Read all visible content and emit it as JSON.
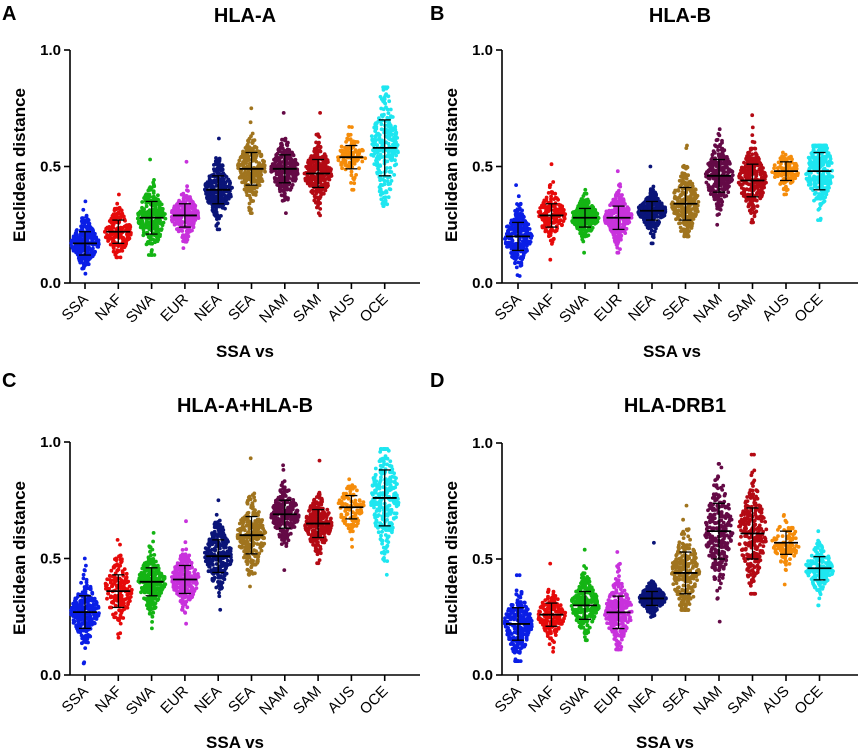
{
  "chart_data": [
    {
      "panel": "A",
      "type": "scatter",
      "title": "HLA-A",
      "xlabel": "SSA vs",
      "ylabel": "Euclidean distance",
      "ylim": [
        0,
        1
      ],
      "yticks": [
        "0.0",
        "0.5",
        "1.0"
      ],
      "categories": [
        "SSA",
        "NAF",
        "SWA",
        "EUR",
        "NEA",
        "SEA",
        "NAM",
        "SAM",
        "AUS",
        "OCE"
      ],
      "colors": [
        "#0a1ee6",
        "#e60a0a",
        "#14b414",
        "#c832dc",
        "#0a1478",
        "#a0741e",
        "#640a46",
        "#b40a14",
        "#f58c0a",
        "#1ee6f0"
      ],
      "series": [
        {
          "name": "SSA",
          "mean": 0.17,
          "sd": 0.05,
          "min": 0.04,
          "max": 0.35,
          "n": 260
        },
        {
          "name": "NAF",
          "mean": 0.22,
          "sd": 0.05,
          "min": 0.11,
          "max": 0.38,
          "n": 170
        },
        {
          "name": "SWA",
          "mean": 0.28,
          "sd": 0.07,
          "min": 0.12,
          "max": 0.53,
          "n": 260
        },
        {
          "name": "EUR",
          "mean": 0.29,
          "sd": 0.05,
          "min": 0.15,
          "max": 0.52,
          "n": 260
        },
        {
          "name": "NEA",
          "mean": 0.4,
          "sd": 0.06,
          "min": 0.23,
          "max": 0.62,
          "n": 260
        },
        {
          "name": "SEA",
          "mean": 0.49,
          "sd": 0.07,
          "min": 0.3,
          "max": 0.75,
          "n": 260
        },
        {
          "name": "NAM",
          "mean": 0.49,
          "sd": 0.06,
          "min": 0.3,
          "max": 0.73,
          "n": 260
        },
        {
          "name": "SAM",
          "mean": 0.47,
          "sd": 0.06,
          "min": 0.29,
          "max": 0.73,
          "n": 260
        },
        {
          "name": "AUS",
          "mean": 0.54,
          "sd": 0.05,
          "min": 0.4,
          "max": 0.67,
          "n": 110
        },
        {
          "name": "OCE",
          "mean": 0.58,
          "sd": 0.12,
          "min": 0.33,
          "max": 0.84,
          "n": 260
        }
      ]
    },
    {
      "panel": "B",
      "type": "scatter",
      "title": "HLA-B",
      "xlabel": "SSA vs",
      "ylabel": "Euclidean distance",
      "ylim": [
        0,
        1
      ],
      "yticks": [
        "0.0",
        "0.5",
        "1.0"
      ],
      "categories": [
        "SSA",
        "NAF",
        "SWA",
        "EUR",
        "NEA",
        "SEA",
        "NAM",
        "SAM",
        "AUS",
        "OCE"
      ],
      "colors": [
        "#0a1ee6",
        "#e60a0a",
        "#14b414",
        "#c832dc",
        "#0a1478",
        "#a0741e",
        "#640a46",
        "#b40a14",
        "#f58c0a",
        "#1ee6f0"
      ],
      "series": [
        {
          "name": "SSA",
          "mean": 0.2,
          "sd": 0.06,
          "min": 0.03,
          "max": 0.42,
          "n": 260
        },
        {
          "name": "NAF",
          "mean": 0.29,
          "sd": 0.05,
          "min": 0.1,
          "max": 0.51,
          "n": 170
        },
        {
          "name": "SWA",
          "mean": 0.28,
          "sd": 0.04,
          "min": 0.13,
          "max": 0.4,
          "n": 260
        },
        {
          "name": "EUR",
          "mean": 0.28,
          "sd": 0.05,
          "min": 0.13,
          "max": 0.48,
          "n": 260
        },
        {
          "name": "NEA",
          "mean": 0.31,
          "sd": 0.04,
          "min": 0.17,
          "max": 0.5,
          "n": 260
        },
        {
          "name": "SEA",
          "mean": 0.34,
          "sd": 0.07,
          "min": 0.2,
          "max": 0.59,
          "n": 260
        },
        {
          "name": "NAM",
          "mean": 0.46,
          "sd": 0.07,
          "min": 0.25,
          "max": 0.66,
          "n": 260
        },
        {
          "name": "SAM",
          "mean": 0.44,
          "sd": 0.07,
          "min": 0.26,
          "max": 0.72,
          "n": 260
        },
        {
          "name": "AUS",
          "mean": 0.48,
          "sd": 0.04,
          "min": 0.38,
          "max": 0.56,
          "n": 110
        },
        {
          "name": "OCE",
          "mean": 0.48,
          "sd": 0.08,
          "min": 0.27,
          "max": 0.59,
          "n": 260
        }
      ]
    },
    {
      "panel": "C",
      "type": "scatter",
      "title": "HLA-A+HLA-B",
      "xlabel": "SSA vs",
      "ylabel": "Euclidean distance",
      "ylim": [
        0,
        1
      ],
      "yticks": [
        "0.0",
        "0.5",
        "1.0"
      ],
      "categories": [
        "SSA",
        "NAF",
        "SWA",
        "EUR",
        "NEA",
        "SEA",
        "NAM",
        "SAM",
        "AUS",
        "OCE"
      ],
      "colors": [
        "#0a1ee6",
        "#e60a0a",
        "#14b414",
        "#c832dc",
        "#0a1478",
        "#a0741e",
        "#640a46",
        "#b40a14",
        "#f58c0a",
        "#1ee6f0"
      ],
      "series": [
        {
          "name": "SSA",
          "mean": 0.27,
          "sd": 0.07,
          "min": 0.05,
          "max": 0.5,
          "n": 260
        },
        {
          "name": "NAF",
          "mean": 0.36,
          "sd": 0.07,
          "min": 0.16,
          "max": 0.58,
          "n": 170
        },
        {
          "name": "SWA",
          "mean": 0.4,
          "sd": 0.06,
          "min": 0.2,
          "max": 0.61,
          "n": 260
        },
        {
          "name": "EUR",
          "mean": 0.41,
          "sd": 0.06,
          "min": 0.22,
          "max": 0.66,
          "n": 260
        },
        {
          "name": "NEA",
          "mean": 0.51,
          "sd": 0.07,
          "min": 0.28,
          "max": 0.75,
          "n": 260
        },
        {
          "name": "SEA",
          "mean": 0.6,
          "sd": 0.08,
          "min": 0.38,
          "max": 0.93,
          "n": 260
        },
        {
          "name": "NAM",
          "mean": 0.69,
          "sd": 0.06,
          "min": 0.45,
          "max": 0.9,
          "n": 260
        },
        {
          "name": "SAM",
          "mean": 0.65,
          "sd": 0.06,
          "min": 0.48,
          "max": 0.92,
          "n": 260
        },
        {
          "name": "AUS",
          "mean": 0.72,
          "sd": 0.05,
          "min": 0.55,
          "max": 0.84,
          "n": 110
        },
        {
          "name": "OCE",
          "mean": 0.76,
          "sd": 0.12,
          "min": 0.43,
          "max": 0.97,
          "n": 260
        }
      ]
    },
    {
      "panel": "D",
      "type": "scatter",
      "title": "HLA-DRB1",
      "xlabel": "SSA vs",
      "ylabel": "Euclidean distance",
      "ylim": [
        0,
        1
      ],
      "yticks": [
        "0.0",
        "0.5",
        "1.0"
      ],
      "categories": [
        "SSA",
        "NAF",
        "SWA",
        "EUR",
        "NEA",
        "SEA",
        "NAM",
        "SAM",
        "AUS",
        "OCE"
      ],
      "colors": [
        "#0a1ee6",
        "#e60a0a",
        "#14b414",
        "#c832dc",
        "#0a1478",
        "#a0741e",
        "#640a46",
        "#b40a14",
        "#f58c0a",
        "#1ee6f0"
      ],
      "series": [
        {
          "name": "SSA",
          "mean": 0.22,
          "sd": 0.07,
          "min": 0.06,
          "max": 0.43,
          "n": 260
        },
        {
          "name": "NAF",
          "mean": 0.26,
          "sd": 0.05,
          "min": 0.1,
          "max": 0.48,
          "n": 170
        },
        {
          "name": "SWA",
          "mean": 0.3,
          "sd": 0.06,
          "min": 0.15,
          "max": 0.54,
          "n": 260
        },
        {
          "name": "EUR",
          "mean": 0.27,
          "sd": 0.07,
          "min": 0.11,
          "max": 0.53,
          "n": 260
        },
        {
          "name": "NEA",
          "mean": 0.33,
          "sd": 0.03,
          "min": 0.25,
          "max": 0.57,
          "n": 260
        },
        {
          "name": "SEA",
          "mean": 0.44,
          "sd": 0.09,
          "min": 0.28,
          "max": 0.73,
          "n": 260
        },
        {
          "name": "NAM",
          "mean": 0.62,
          "sd": 0.12,
          "min": 0.23,
          "max": 0.91,
          "n": 260
        },
        {
          "name": "SAM",
          "mean": 0.61,
          "sd": 0.11,
          "min": 0.35,
          "max": 0.95,
          "n": 260
        },
        {
          "name": "AUS",
          "mean": 0.57,
          "sd": 0.05,
          "min": 0.39,
          "max": 0.69,
          "n": 110
        },
        {
          "name": "OCE",
          "mean": 0.46,
          "sd": 0.05,
          "min": 0.3,
          "max": 0.62,
          "n": 180
        }
      ]
    }
  ]
}
